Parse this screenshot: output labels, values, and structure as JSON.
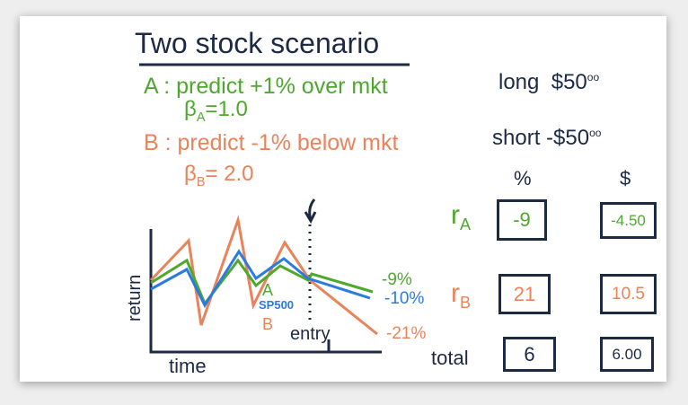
{
  "title": "Two stock scenario",
  "stock_a": {
    "label": "A : predict +1% over mkt",
    "beta_symbol": "β",
    "beta_sub": "A",
    "beta_value": "=1.0"
  },
  "stock_b": {
    "label": "B : predict -1% below mkt",
    "beta_symbol": "β",
    "beta_sub": "B",
    "beta_value": "= 2.0"
  },
  "chart": {
    "ylabel": "return",
    "xlabel": "time",
    "entry_label": "entry",
    "labels": {
      "a": "A",
      "sp500": "SP500",
      "b": "B"
    },
    "end_values": {
      "a": "-9%",
      "sp500": "-10%",
      "b": "-21%"
    }
  },
  "positions": {
    "long": "long",
    "long_amount": "$50",
    "long_cents": "oo",
    "short": "short",
    "short_amount": "-$50",
    "short_cents": "oo"
  },
  "table": {
    "col_pct": "%",
    "col_dollar": "$",
    "rows": [
      {
        "label": "r",
        "sub": "A",
        "pct": "-9",
        "dollar": "-4.50"
      },
      {
        "label": "r",
        "sub": "B",
        "pct": "21",
        "dollar": "10.5"
      },
      {
        "label": "total",
        "sub": "",
        "pct": "6",
        "dollar": "6.00"
      }
    ]
  },
  "colors": {
    "a": "#4fa82e",
    "b": "#e8835a",
    "sp500": "#2a7be0",
    "ink": "#1c2a44"
  }
}
